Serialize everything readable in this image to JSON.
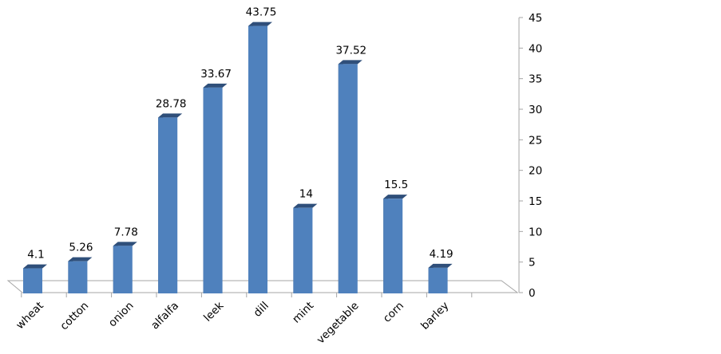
{
  "chart_data": {
    "type": "bar",
    "categories": [
      "wheat",
      "cotton",
      "onion",
      "alfalfa",
      "leek",
      "dill",
      "mint",
      "vegetable",
      "corn",
      "barley"
    ],
    "values": [
      4.1,
      5.26,
      7.78,
      28.78,
      33.67,
      43.75,
      14,
      37.52,
      15.5,
      4.19
    ],
    "data_labels": [
      "4.1",
      "5.26",
      "7.78",
      "28.78",
      "33.67",
      "43.75",
      "14",
      "37.52",
      "15.5",
      "4.19"
    ],
    "y_ticks": [
      "0",
      "5",
      "10",
      "15",
      "20",
      "25",
      "30",
      "35",
      "40",
      "45"
    ],
    "ylim": [
      0,
      45
    ],
    "y_axis_side": "right",
    "grid": false,
    "legend": "none",
    "style": "3d-column",
    "colors": {
      "bar_front": "#4f81bd",
      "bar_top": "#2f4f7a",
      "bar_side": "#1f3656",
      "axis": "#a6a6a6"
    }
  }
}
